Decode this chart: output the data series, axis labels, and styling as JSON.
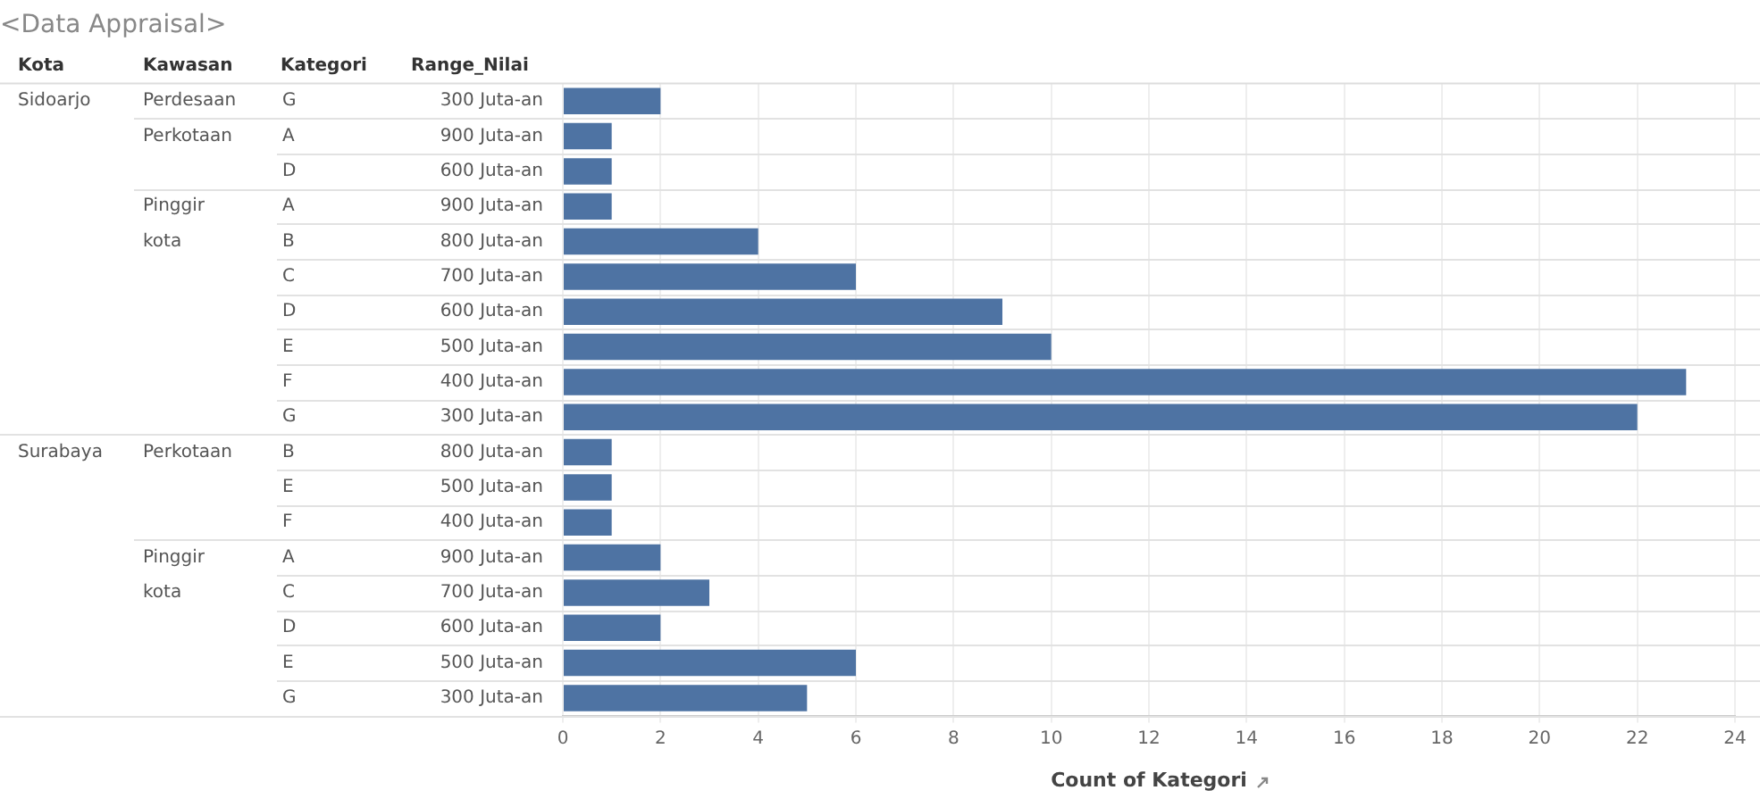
{
  "chart_data": {
    "type": "bar",
    "orientation": "horizontal",
    "title": "<Data Appraisal>",
    "ylabel": "Range_Nilai",
    "xlabel": "Count of Kategori",
    "categories": [
      "300 Juta-an",
      "900 Juta-an",
      "600 Juta-an",
      "900 Juta-an",
      "800 Juta-an",
      "700 Juta-an",
      "600 Juta-an",
      "500 Juta-an",
      "400 Juta-an",
      "300 Juta-an",
      "800 Juta-an",
      "500 Juta-an",
      "400 Juta-an",
      "900 Juta-an",
      "700 Juta-an",
      "600 Juta-an",
      "500 Juta-an",
      "300 Juta-an"
    ],
    "values": [
      2,
      1,
      1,
      1,
      4,
      6,
      9,
      10,
      23,
      22,
      1,
      1,
      1,
      2,
      3,
      2,
      6,
      5
    ],
    "color": "#4e73a3",
    "xlim": [
      0,
      24
    ],
    "xticks": [
      0,
      2,
      4,
      6,
      8,
      10,
      12,
      14,
      16,
      18,
      20,
      22,
      24
    ],
    "grid": true,
    "legend": false,
    "annotations": [
      "Kota",
      "Kawasan",
      "Kategori",
      "Sidoarjo",
      "Surabaya",
      "Perdesaan",
      "Perkotaan",
      "Pinggir kota",
      "Perkotaan",
      "Pinggir kota",
      "G",
      "A",
      "D",
      "A",
      "B",
      "C",
      "D",
      "E",
      "F",
      "G",
      "B",
      "E",
      "F",
      "A",
      "C",
      "D",
      "E",
      "G"
    ]
  }
}
